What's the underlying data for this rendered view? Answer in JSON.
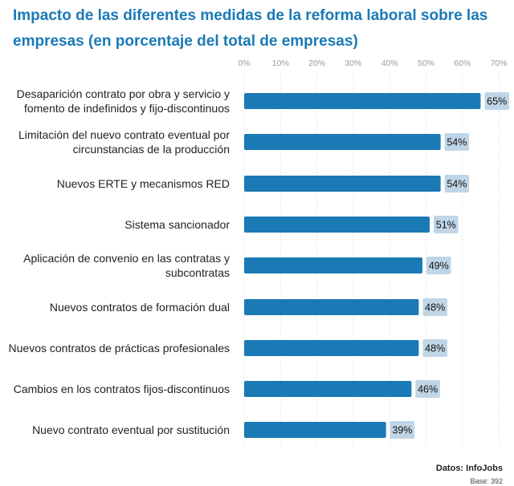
{
  "colors": {
    "title": "#1a7ab5",
    "bar": "#1a7ab5",
    "label_bg": "#c0d5e6",
    "tick": "#999999",
    "grid": "#d0d0d0"
  },
  "chart_data": {
    "type": "bar",
    "orientation": "horizontal",
    "title": "Impacto de las diferentes medidas de la reforma laboral sobre las empresas (en porcentaje del total de empresas)",
    "xlim": [
      0,
      70
    ],
    "xticks": [
      "0%",
      "10%",
      "20%",
      "30%",
      "40%",
      "50%",
      "60%",
      "70%"
    ],
    "tick_values": [
      0,
      10,
      20,
      30,
      40,
      50,
      60,
      70
    ],
    "categories": [
      "Desaparición contrato por obra y servicio y fomento de indefinidos y fijo-discontinuos",
      "Limitación del nuevo contrato eventual por circunstancias de la producción",
      "Nuevos ERTE y mecanismos RED",
      "Sistema sancionador",
      "Aplicación de convenio en las contratas y subcontratas",
      "Nuevos contratos de formación dual",
      "Nuevos contratos de prácticas profesionales",
      "Cambios en los contratos fijos-discontinuos",
      "Nuevo contrato eventual por sustitución"
    ],
    "values": [
      65,
      54,
      54,
      51,
      49,
      48,
      48,
      46,
      39
    ],
    "value_labels": [
      "65%",
      "54%",
      "54%",
      "51%",
      "49%",
      "48%",
      "48%",
      "46%",
      "39%"
    ]
  },
  "footer": {
    "source": "Datos: InfoJobs",
    "base": "Base: 392"
  }
}
